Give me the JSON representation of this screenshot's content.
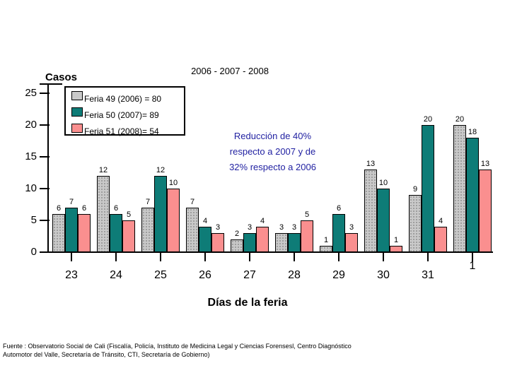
{
  "title": "2006 - 2007 - 2008",
  "y_axis_label": "Casos",
  "x_axis_title": "Días de la feria",
  "annotation": {
    "color": "#2222a2",
    "lines": [
      "Reducción de 40%",
      "respecto a 2007 y de",
      "32% respecto a 2006"
    ]
  },
  "legend": {
    "items": [
      {
        "label": "Feria 49 (2006) = 80",
        "color": "#c9c9c9"
      },
      {
        "label": "Feria 50 (2007)= 89",
        "color": "#0e7c77"
      },
      {
        "label": "Feria 51 (2008)= 54",
        "color": "#fa8f8f"
      }
    ]
  },
  "footer": {
    "line1": "Fuente : Observatorio Social de Cali (Fiscalía, Policía, Instituto de Medicina Legal y Ciencias Forensesl, Centro Diagnóstico",
    "line2": "Automotor del Valle, Secretaría de Tránsito, CTI, Secretaría de Gobierno)"
  },
  "chart_data": {
    "type": "bar",
    "title": "2006 - 2007 - 2008",
    "xlabel": "Días de la feria",
    "ylabel": "Casos",
    "categories": [
      "23",
      "24",
      "25",
      "26",
      "27",
      "28",
      "29",
      "30",
      "31",
      "1"
    ],
    "series": [
      {
        "name": "Feria 49 (2006) = 80",
        "color": "#c9c9c9",
        "total": 80,
        "values": [
          6,
          12,
          7,
          7,
          2,
          3,
          1,
          13,
          9,
          20
        ]
      },
      {
        "name": "Feria 50 (2007)= 89",
        "color": "#0e7c77",
        "total": 89,
        "values": [
          7,
          6,
          12,
          4,
          3,
          3,
          6,
          10,
          20,
          18
        ]
      },
      {
        "name": "Feria 51 (2008)= 54",
        "color": "#fa8f8f",
        "total": 54,
        "values": [
          6,
          5,
          10,
          3,
          4,
          5,
          3,
          1,
          4,
          13
        ]
      }
    ],
    "ylim": [
      0,
      25
    ],
    "yticks": [
      0,
      5,
      10,
      15,
      20,
      25
    ],
    "grid": false,
    "bar_value_labels": true,
    "legend_position": "top-left"
  }
}
